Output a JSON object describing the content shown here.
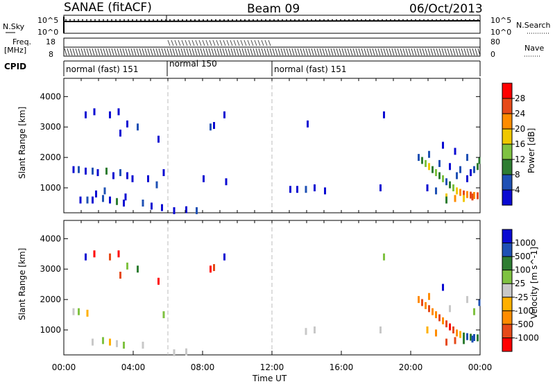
{
  "header": {
    "title": "SANAE (fitACF)",
    "beam": "Beam 09",
    "date": "06/Oct/2013"
  },
  "params": {
    "nsky_label": "N.Sky",
    "nsearch_label": "N.Search",
    "freq_label_1": "Freq.",
    "freq_label_2": "[MHz]",
    "nave_label": "Nave",
    "cpid_label": "CPID",
    "nsky_ticks": [
      "10^5",
      "10^0"
    ],
    "nsearch_ticks": [
      "10^5",
      "10^0"
    ],
    "freq_ticks": [
      "18",
      "8"
    ],
    "nave_ticks": [
      "80",
      "0"
    ]
  },
  "cpid_segments": [
    {
      "label": "normal (fast) 151",
      "start_hour": 0,
      "end_hour": 6
    },
    {
      "label": "normal 150",
      "start_hour": 6,
      "end_hour": 12
    },
    {
      "label": "normal (fast) 151",
      "start_hour": 12,
      "end_hour": 24
    }
  ],
  "colors": {
    "power_scale": [
      "#0a0ad2",
      "#1e50b4",
      "#2e7d32",
      "#7fc241",
      "#f0c800",
      "#ff8c00",
      "#e64a19",
      "#ff0000"
    ],
    "velocity_scale": [
      "#ff0000",
      "#e64a19",
      "#ff8c00",
      "#ffb000",
      "#c8c8c8",
      "#7fc241",
      "#2e7d32",
      "#1e50b4",
      "#0a0ad2"
    ]
  },
  "chart_data": [
    {
      "type": "heatmap",
      "name": "power",
      "xlabel": "",
      "ylabel": "Slant Range [km]",
      "xlim": [
        0,
        24
      ],
      "ylim": [
        180,
        4600
      ],
      "y_ticks": [
        "1000",
        "2000",
        "3000",
        "4000"
      ],
      "colorbar_label": "Power [dB]",
      "colorbar_ticks": [
        "4",
        "8",
        "12",
        "16",
        "20",
        "24",
        "28"
      ],
      "clim": [
        0,
        32
      ],
      "cells": [
        [
          0.5,
          1600,
          1
        ],
        [
          0.8,
          1600,
          2
        ],
        [
          1.2,
          1550,
          1
        ],
        [
          1.6,
          1550,
          2
        ],
        [
          1.9,
          1500,
          1
        ],
        [
          2.4,
          1550,
          3
        ],
        [
          2.8,
          1400,
          1
        ],
        [
          3.2,
          1500,
          2
        ],
        [
          3.6,
          1400,
          1
        ],
        [
          3.9,
          1300,
          1
        ],
        [
          0.9,
          600,
          1
        ],
        [
          1.3,
          600,
          2
        ],
        [
          1.6,
          600,
          1
        ],
        [
          2.2,
          650,
          2
        ],
        [
          2.6,
          600,
          1
        ],
        [
          3.0,
          550,
          3
        ],
        [
          3.4,
          500,
          1
        ],
        [
          4.5,
          500,
          2
        ],
        [
          5.0,
          400,
          1
        ],
        [
          5.6,
          350,
          1
        ],
        [
          1.7,
          3500,
          1
        ],
        [
          2.6,
          3400,
          1
        ],
        [
          3.1,
          3500,
          1
        ],
        [
          3.6,
          3100,
          1
        ],
        [
          4.2,
          3000,
          2
        ],
        [
          5.4,
          2600,
          1
        ],
        [
          3.2,
          2800,
          1
        ],
        [
          1.2,
          3400,
          1
        ],
        [
          1.8,
          800,
          1
        ],
        [
          2.3,
          900,
          2
        ],
        [
          3.5,
          700,
          1
        ],
        [
          4.8,
          1300,
          1
        ],
        [
          5.3,
          1100,
          2
        ],
        [
          5.7,
          1500,
          1
        ],
        [
          6.3,
          250,
          1
        ],
        [
          7.0,
          280,
          1
        ],
        [
          7.6,
          250,
          2
        ],
        [
          8.0,
          1300,
          1
        ],
        [
          8.4,
          3000,
          2
        ],
        [
          8.6,
          3050,
          1
        ],
        [
          9.2,
          3400,
          1
        ],
        [
          9.3,
          1200,
          1
        ],
        [
          13.0,
          950,
          1
        ],
        [
          13.4,
          950,
          1
        ],
        [
          13.9,
          950,
          2
        ],
        [
          14.4,
          1000,
          1
        ],
        [
          15.0,
          900,
          1
        ],
        [
          14.0,
          3100,
          1
        ],
        [
          18.4,
          3400,
          1
        ],
        [
          18.2,
          1000,
          1
        ],
        [
          20.4,
          2000,
          2
        ],
        [
          20.6,
          1900,
          3
        ],
        [
          20.8,
          1800,
          4
        ],
        [
          21.0,
          1700,
          5
        ],
        [
          21.2,
          1600,
          3
        ],
        [
          21.4,
          1500,
          4
        ],
        [
          21.6,
          1400,
          3
        ],
        [
          21.8,
          1300,
          4
        ],
        [
          22.0,
          1200,
          2
        ],
        [
          22.2,
          1100,
          3
        ],
        [
          22.4,
          1000,
          4
        ],
        [
          22.6,
          900,
          5
        ],
        [
          22.8,
          850,
          6
        ],
        [
          23.0,
          800,
          7
        ],
        [
          23.2,
          780,
          6
        ],
        [
          23.4,
          760,
          7
        ],
        [
          23.6,
          750,
          6
        ],
        [
          23.8,
          740,
          7
        ],
        [
          22.0,
          700,
          5
        ],
        [
          22.5,
          650,
          6
        ],
        [
          23.0,
          650,
          5
        ],
        [
          23.5,
          700,
          7
        ],
        [
          21.0,
          2100,
          2
        ],
        [
          21.6,
          1800,
          2
        ],
        [
          22.2,
          1700,
          1
        ],
        [
          22.8,
          1600,
          2
        ],
        [
          23.4,
          1500,
          1
        ],
        [
          23.9,
          1900,
          3
        ],
        [
          23.6,
          1600,
          2
        ],
        [
          23.2,
          1300,
          1
        ],
        [
          22.6,
          1400,
          2
        ],
        [
          21.8,
          2400,
          1
        ],
        [
          22.5,
          2200,
          1
        ],
        [
          23.2,
          2000,
          2
        ],
        [
          23.8,
          1700,
          3
        ],
        [
          20.9,
          1000,
          1
        ],
        [
          21.4,
          900,
          2
        ],
        [
          22.0,
          600,
          3
        ]
      ]
    },
    {
      "type": "heatmap",
      "name": "velocity",
      "xlabel": "Time UT",
      "ylabel": "Slant Range [km]",
      "xlim": [
        0,
        24
      ],
      "ylim": [
        180,
        4600
      ],
      "x_ticks": [
        "00:00",
        "04:00",
        "08:00",
        "12:00",
        "16:00",
        "20:00",
        "00:00"
      ],
      "y_ticks": [
        "1000",
        "2000",
        "3000",
        "4000"
      ],
      "colorbar_label": "Velocity [m s^-1]",
      "colorbar_ticks": [
        "-1000",
        "-500",
        "-100",
        "-25",
        "25",
        "100",
        "500",
        "1000"
      ],
      "clim": [
        -1250,
        1250
      ],
      "cells": [
        [
          0.5,
          1600,
          0
        ],
        [
          0.8,
          1600,
          1
        ],
        [
          1.3,
          1550,
          -1
        ],
        [
          1.6,
          600,
          0
        ],
        [
          2.2,
          650,
          1
        ],
        [
          2.6,
          600,
          -1
        ],
        [
          3.0,
          550,
          0
        ],
        [
          3.4,
          500,
          1
        ],
        [
          4.5,
          500,
          0
        ],
        [
          1.7,
          3500,
          -4
        ],
        [
          2.6,
          3400,
          -3
        ],
        [
          3.1,
          3500,
          -5
        ],
        [
          3.6,
          3100,
          1
        ],
        [
          4.2,
          3000,
          2
        ],
        [
          3.2,
          2800,
          -3
        ],
        [
          1.2,
          3400,
          4
        ],
        [
          5.4,
          2600,
          -4
        ],
        [
          5.7,
          1500,
          1
        ],
        [
          6.3,
          250,
          0
        ],
        [
          7.0,
          280,
          0
        ],
        [
          8.4,
          3000,
          -4
        ],
        [
          8.6,
          3050,
          -3
        ],
        [
          9.2,
          3400,
          5
        ],
        [
          13.9,
          950,
          0
        ],
        [
          14.4,
          1000,
          0
        ],
        [
          18.4,
          3400,
          1
        ],
        [
          18.2,
          1000,
          0
        ],
        [
          20.4,
          2000,
          -2
        ],
        [
          20.6,
          1900,
          -3
        ],
        [
          20.8,
          1800,
          -2
        ],
        [
          21.0,
          1700,
          -3
        ],
        [
          21.2,
          1600,
          -2
        ],
        [
          21.4,
          1500,
          -2
        ],
        [
          21.6,
          1400,
          -3
        ],
        [
          21.8,
          1300,
          -2
        ],
        [
          22.0,
          1200,
          -3
        ],
        [
          22.2,
          1100,
          -4
        ],
        [
          22.4,
          1000,
          -3
        ],
        [
          22.6,
          900,
          -2
        ],
        [
          22.8,
          850,
          -1
        ],
        [
          23.0,
          800,
          2
        ],
        [
          23.2,
          780,
          3
        ],
        [
          23.4,
          760,
          2
        ],
        [
          23.6,
          750,
          3
        ],
        [
          23.8,
          740,
          2
        ],
        [
          22.5,
          650,
          -3
        ],
        [
          23.0,
          650,
          2
        ],
        [
          23.5,
          700,
          3
        ],
        [
          21.0,
          2100,
          -2
        ],
        [
          22.2,
          1700,
          0
        ],
        [
          23.9,
          1900,
          3
        ],
        [
          23.6,
          1600,
          1
        ],
        [
          21.8,
          2400,
          4
        ],
        [
          23.2,
          2000,
          0
        ],
        [
          20.9,
          1000,
          -1
        ],
        [
          21.4,
          900,
          -2
        ],
        [
          22.0,
          600,
          -3
        ]
      ]
    }
  ]
}
